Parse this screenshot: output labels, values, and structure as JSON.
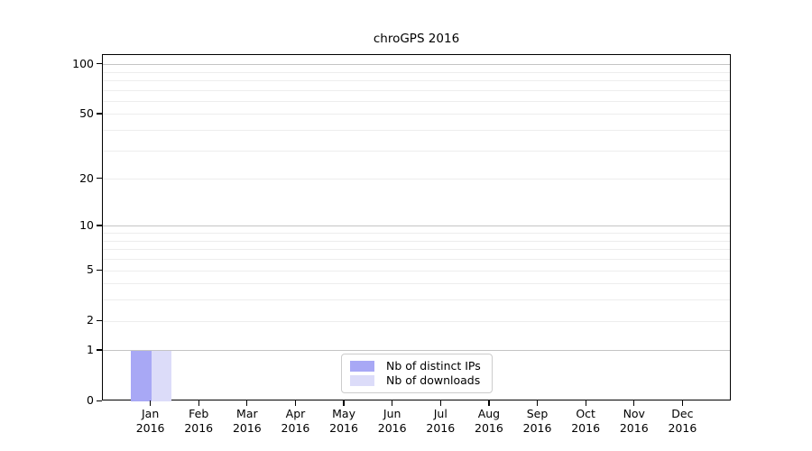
{
  "chart_data": {
    "type": "bar",
    "title": "chroGPS 2016",
    "categories": [
      {
        "label": "Jan",
        "sub": "2016"
      },
      {
        "label": "Feb",
        "sub": "2016"
      },
      {
        "label": "Mar",
        "sub": "2016"
      },
      {
        "label": "Apr",
        "sub": "2016"
      },
      {
        "label": "May",
        "sub": "2016"
      },
      {
        "label": "Jun",
        "sub": "2016"
      },
      {
        "label": "Jul",
        "sub": "2016"
      },
      {
        "label": "Aug",
        "sub": "2016"
      },
      {
        "label": "Sep",
        "sub": "2016"
      },
      {
        "label": "Oct",
        "sub": "2016"
      },
      {
        "label": "Nov",
        "sub": "2016"
      },
      {
        "label": "Dec",
        "sub": "2016"
      }
    ],
    "series": [
      {
        "name": "Nb of distinct IPs",
        "color": "#a8a8f5",
        "values": [
          1,
          0,
          0,
          0,
          0,
          0,
          0,
          0,
          0,
          0,
          0,
          0
        ]
      },
      {
        "name": "Nb of downloads",
        "color": "#dcdcf9",
        "values": [
          1,
          0,
          0,
          0,
          0,
          0,
          0,
          0,
          0,
          0,
          0,
          0
        ]
      }
    ],
    "xlabel": "",
    "ylabel": "",
    "y_scale": "log10(1+y)",
    "ylim": [
      0,
      114
    ],
    "y_ticks": [
      "0",
      "1",
      "2",
      "5",
      "10",
      "20",
      "50",
      "100"
    ],
    "y_tick_values": [
      0,
      1,
      2,
      5,
      10,
      20,
      50,
      100
    ],
    "gridlines_major": [
      1,
      10,
      100
    ],
    "gridlines_minor": [
      2,
      3,
      4,
      5,
      6,
      7,
      8,
      9,
      20,
      30,
      40,
      50,
      60,
      70,
      80,
      90
    ],
    "grid": true,
    "legend_position": "bottom-center"
  },
  "colors": {
    "grid_major": "#c4c4c4",
    "grid_minor": "#ededed",
    "axis": "#000000",
    "legend_border": "#cccccc",
    "background": "#ffffff"
  }
}
